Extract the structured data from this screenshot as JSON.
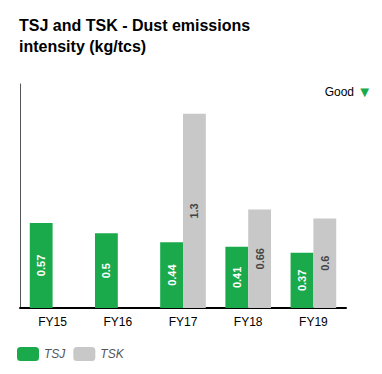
{
  "chart_data": {
    "type": "bar",
    "title": "TSJ and TSK - Dust emissions\nintensity (kg/tcs)",
    "categories": [
      "FY15",
      "FY16",
      "FY17",
      "FY18",
      "FY19"
    ],
    "series": [
      {
        "name": "TSJ",
        "color": "#1aaa4b",
        "values": [
          0.57,
          0.5,
          0.44,
          0.41,
          0.37
        ]
      },
      {
        "name": "TSK",
        "color": "#c8c8c8",
        "values": [
          null,
          null,
          1.3,
          0.66,
          0.6
        ]
      }
    ],
    "ylim": [
      0,
      1.5
    ],
    "grid": false,
    "legend": "bottom",
    "data_labels": true,
    "tick_labels": "x",
    "annotations": [
      "Good",
      "▼"
    ]
  }
}
